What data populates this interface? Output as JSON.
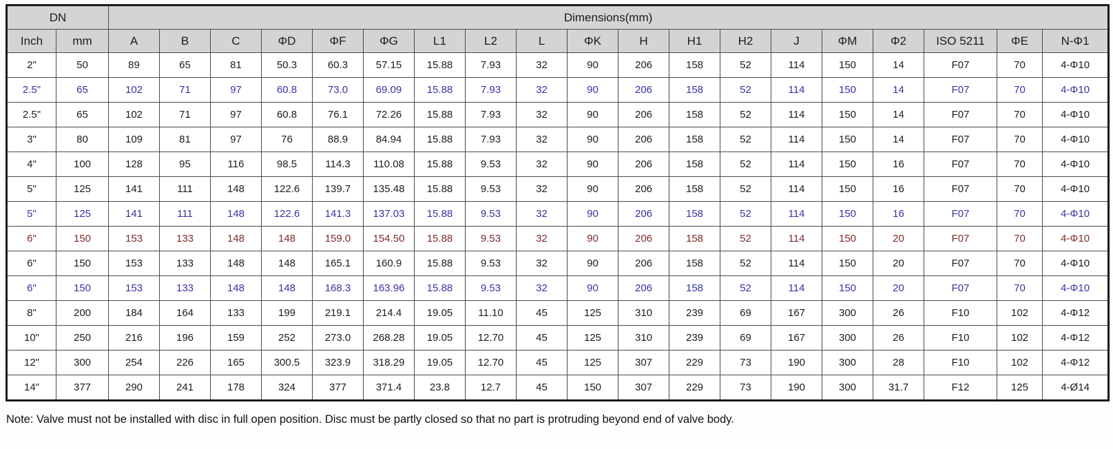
{
  "table": {
    "header_group_dn": "DN",
    "header_group_dimensions": "Dimensions(mm)",
    "columns": [
      "Inch",
      "mm",
      "A",
      "B",
      "C",
      "ΦD",
      "ΦF",
      "ΦG",
      "L1",
      "L2",
      "L",
      "ΦK",
      "H",
      "H1",
      "H2",
      "J",
      "ΦM",
      "Φ2",
      "ISO 5211",
      "ΦE",
      "N-Φ1"
    ],
    "rows": [
      {
        "color": "black",
        "cells": [
          "2\"",
          "50",
          "89",
          "65",
          "81",
          "50.3",
          "60.3",
          "57.15",
          "15.88",
          "7.93",
          "32",
          "90",
          "206",
          "158",
          "52",
          "114",
          "150",
          "14",
          "F07",
          "70",
          "4-Φ10"
        ]
      },
      {
        "color": "blue",
        "cells": [
          "2.5\"",
          "65",
          "102",
          "71",
          "97",
          "60.8",
          "73.0",
          "69.09",
          "15.88",
          "7.93",
          "32",
          "90",
          "206",
          "158",
          "52",
          "114",
          "150",
          "14",
          "F07",
          "70",
          "4-Φ10"
        ]
      },
      {
        "color": "black",
        "cells": [
          "2.5\"",
          "65",
          "102",
          "71",
          "97",
          "60.8",
          "76.1",
          "72.26",
          "15.88",
          "7.93",
          "32",
          "90",
          "206",
          "158",
          "52",
          "114",
          "150",
          "14",
          "F07",
          "70",
          "4-Φ10"
        ]
      },
      {
        "color": "black",
        "cells": [
          "3\"",
          "80",
          "109",
          "81",
          "97",
          "76",
          "88.9",
          "84.94",
          "15.88",
          "7.93",
          "32",
          "90",
          "206",
          "158",
          "52",
          "114",
          "150",
          "14",
          "F07",
          "70",
          "4-Φ10"
        ]
      },
      {
        "color": "black",
        "cells": [
          "4\"",
          "100",
          "128",
          "95",
          "116",
          "98.5",
          "114.3",
          "110.08",
          "15.88",
          "9.53",
          "32",
          "90",
          "206",
          "158",
          "52",
          "114",
          "150",
          "16",
          "F07",
          "70",
          "4-Φ10"
        ]
      },
      {
        "color": "black",
        "cells": [
          "5\"",
          "125",
          "141",
          "111",
          "148",
          "122.6",
          "139.7",
          "135.48",
          "15.88",
          "9.53",
          "32",
          "90",
          "206",
          "158",
          "52",
          "114",
          "150",
          "16",
          "F07",
          "70",
          "4-Φ10"
        ]
      },
      {
        "color": "blue",
        "cells": [
          "5\"",
          "125",
          "141",
          "111",
          "148",
          "122.6",
          "141.3",
          "137.03",
          "15.88",
          "9.53",
          "32",
          "90",
          "206",
          "158",
          "52",
          "114",
          "150",
          "16",
          "F07",
          "70",
          "4-Φ10"
        ]
      },
      {
        "color": "red",
        "cells": [
          "6\"",
          "150",
          "153",
          "133",
          "148",
          "148",
          "159.0",
          "154.50",
          "15.88",
          "9.53",
          "32",
          "90",
          "206",
          "158",
          "52",
          "114",
          "150",
          "20",
          "F07",
          "70",
          "4-Φ10"
        ]
      },
      {
        "color": "black",
        "cells": [
          "6\"",
          "150",
          "153",
          "133",
          "148",
          "148",
          "165.1",
          "160.9",
          "15.88",
          "9.53",
          "32",
          "90",
          "206",
          "158",
          "52",
          "114",
          "150",
          "20",
          "F07",
          "70",
          "4-Φ10"
        ]
      },
      {
        "color": "blue",
        "cells": [
          "6\"",
          "150",
          "153",
          "133",
          "148",
          "148",
          "168.3",
          "163.96",
          "15.88",
          "9.53",
          "32",
          "90",
          "206",
          "158",
          "52",
          "114",
          "150",
          "20",
          "F07",
          "70",
          "4-Φ10"
        ]
      },
      {
        "color": "black",
        "cells": [
          "8\"",
          "200",
          "184",
          "164",
          "133",
          "199",
          "219.1",
          "214.4",
          "19.05",
          "11.10",
          "45",
          "125",
          "310",
          "239",
          "69",
          "167",
          "300",
          "26",
          "F10",
          "102",
          "4-Φ12"
        ]
      },
      {
        "color": "black",
        "cells": [
          "10\"",
          "250",
          "216",
          "196",
          "159",
          "252",
          "273.0",
          "268.28",
          "19.05",
          "12.70",
          "45",
          "125",
          "310",
          "239",
          "69",
          "167",
          "300",
          "26",
          "F10",
          "102",
          "4-Φ12"
        ]
      },
      {
        "color": "black",
        "cells": [
          "12\"",
          "300",
          "254",
          "226",
          "165",
          "300.5",
          "323.9",
          "318.29",
          "19.05",
          "12.70",
          "45",
          "125",
          "307",
          "229",
          "73",
          "190",
          "300",
          "28",
          "F10",
          "102",
          "4-Φ12"
        ]
      },
      {
        "color": "black",
        "cells": [
          "14\"",
          "377",
          "290",
          "241",
          "178",
          "324",
          "377",
          "371.4",
          "23.8",
          "12.7",
          "45",
          "150",
          "307",
          "229",
          "73",
          "190",
          "300",
          "31.7",
          "F12",
          "125",
          "4-Ø14"
        ]
      }
    ]
  },
  "note": "Note: Valve must not be installed with disc in full open position. Disc must be partly closed so that no part is protruding beyond end of valve body.",
  "colors": {
    "highlight_blue": "#3434a4",
    "highlight_red": "#7b2b2b",
    "header_bg": "#d4d4d4",
    "border": "#4a4a4a",
    "outer_border": "#1a1a1a"
  }
}
